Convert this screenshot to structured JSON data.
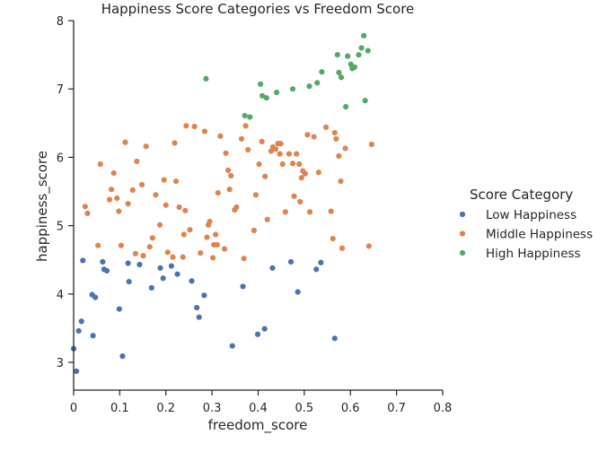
{
  "chart_data": {
    "type": "scatter",
    "title": "Happiness Score Categories vs Freedom Score",
    "xlabel": "freedom_score",
    "ylabel": "happiness_score",
    "xlim": [
      0,
      0.8
    ],
    "ylim": [
      2.6,
      8
    ],
    "xticks": [
      "0",
      "0.1",
      "0.2",
      "0.3",
      "0.4",
      "0.5",
      "0.6",
      "0.7",
      "0.8"
    ],
    "yticks": [
      "3",
      "4",
      "5",
      "6",
      "7",
      "8"
    ],
    "xtick_values": [
      0,
      0.1,
      0.2,
      0.3,
      0.4,
      0.5,
      0.6,
      0.7,
      0.8
    ],
    "ytick_values": [
      3,
      4,
      5,
      6,
      7,
      8
    ],
    "grid": false,
    "legend": {
      "title": "Score Category",
      "placement": "center-right"
    },
    "series": [
      {
        "name": "Low Happiness",
        "color": "#4c72b0",
        "points": [
          [
            0.0,
            3.2
          ],
          [
            0.006,
            2.87
          ],
          [
            0.011,
            3.46
          ],
          [
            0.017,
            3.6
          ],
          [
            0.02,
            4.49
          ],
          [
            0.04,
            3.99
          ],
          [
            0.042,
            3.39
          ],
          [
            0.047,
            3.95
          ],
          [
            0.063,
            4.47
          ],
          [
            0.066,
            4.36
          ],
          [
            0.072,
            4.34
          ],
          [
            0.099,
            3.78
          ],
          [
            0.106,
            3.09
          ],
          [
            0.118,
            4.45
          ],
          [
            0.12,
            4.18
          ],
          [
            0.143,
            4.43
          ],
          [
            0.169,
            4.09
          ],
          [
            0.188,
            4.38
          ],
          [
            0.194,
            4.23
          ],
          [
            0.212,
            4.41
          ],
          [
            0.225,
            4.29
          ],
          [
            0.256,
            4.19
          ],
          [
            0.267,
            3.8
          ],
          [
            0.272,
            3.66
          ],
          [
            0.283,
            3.98
          ],
          [
            0.344,
            3.24
          ],
          [
            0.367,
            4.11
          ],
          [
            0.399,
            3.41
          ],
          [
            0.414,
            3.49
          ],
          [
            0.431,
            4.38
          ],
          [
            0.471,
            4.47
          ],
          [
            0.486,
            4.03
          ],
          [
            0.526,
            4.36
          ],
          [
            0.536,
            4.46
          ],
          [
            0.566,
            3.35
          ]
        ]
      },
      {
        "name": "Middle Happiness",
        "color": "#dd8452",
        "points": [
          [
            0.025,
            5.28
          ],
          [
            0.03,
            5.18
          ],
          [
            0.053,
            4.71
          ],
          [
            0.058,
            5.9
          ],
          [
            0.078,
            5.38
          ],
          [
            0.082,
            5.53
          ],
          [
            0.087,
            5.77
          ],
          [
            0.094,
            5.4
          ],
          [
            0.098,
            5.21
          ],
          [
            0.103,
            4.71
          ],
          [
            0.112,
            6.22
          ],
          [
            0.118,
            5.32
          ],
          [
            0.128,
            5.52
          ],
          [
            0.134,
            4.59
          ],
          [
            0.137,
            5.94
          ],
          [
            0.148,
            5.6
          ],
          [
            0.151,
            4.56
          ],
          [
            0.157,
            6.16
          ],
          [
            0.165,
            4.69
          ],
          [
            0.171,
            4.82
          ],
          [
            0.178,
            5.45
          ],
          [
            0.187,
            5.01
          ],
          [
            0.196,
            5.67
          ],
          [
            0.2,
            5.3
          ],
          [
            0.204,
            4.61
          ],
          [
            0.215,
            4.54
          ],
          [
            0.219,
            6.21
          ],
          [
            0.222,
            5.65
          ],
          [
            0.229,
            5.27
          ],
          [
            0.237,
            4.54
          ],
          [
            0.239,
            4.87
          ],
          [
            0.242,
            5.22
          ],
          [
            0.244,
            6.46
          ],
          [
            0.252,
            4.94
          ],
          [
            0.262,
            6.45
          ],
          [
            0.275,
            4.6
          ],
          [
            0.284,
            6.38
          ],
          [
            0.289,
            4.83
          ],
          [
            0.292,
            5.01
          ],
          [
            0.295,
            5.06
          ],
          [
            0.302,
            4.53
          ],
          [
            0.304,
            4.72
          ],
          [
            0.308,
            4.87
          ],
          [
            0.311,
            4.72
          ],
          [
            0.313,
            5.48
          ],
          [
            0.318,
            6.31
          ],
          [
            0.327,
            4.66
          ],
          [
            0.33,
            6.06
          ],
          [
            0.335,
            5.81
          ],
          [
            0.338,
            5.53
          ],
          [
            0.341,
            5.73
          ],
          [
            0.349,
            5.23
          ],
          [
            0.353,
            5.27
          ],
          [
            0.364,
            6.27
          ],
          [
            0.369,
            4.52
          ],
          [
            0.373,
            6.46
          ],
          [
            0.378,
            6.11
          ],
          [
            0.391,
            4.93
          ],
          [
            0.395,
            5.45
          ],
          [
            0.402,
            5.9
          ],
          [
            0.408,
            6.23
          ],
          [
            0.415,
            5.72
          ],
          [
            0.42,
            5.09
          ],
          [
            0.428,
            6.09
          ],
          [
            0.432,
            6.15
          ],
          [
            0.438,
            6.12
          ],
          [
            0.443,
            6.2
          ],
          [
            0.447,
            6.05
          ],
          [
            0.449,
            6.2
          ],
          [
            0.453,
            5.9
          ],
          [
            0.459,
            5.2
          ],
          [
            0.467,
            6.05
          ],
          [
            0.475,
            5.91
          ],
          [
            0.478,
            5.43
          ],
          [
            0.483,
            6.05
          ],
          [
            0.489,
            5.9
          ],
          [
            0.491,
            5.35
          ],
          [
            0.494,
            5.7
          ],
          [
            0.497,
            5.8
          ],
          [
            0.502,
            5.76
          ],
          [
            0.507,
            6.33
          ],
          [
            0.512,
            5.2
          ],
          [
            0.521,
            6.3
          ],
          [
            0.531,
            5.78
          ],
          [
            0.547,
            6.44
          ],
          [
            0.558,
            5.21
          ],
          [
            0.562,
            4.81
          ],
          [
            0.566,
            6.36
          ],
          [
            0.569,
            6.27
          ],
          [
            0.575,
            6.02
          ],
          [
            0.579,
            5.65
          ],
          [
            0.582,
            4.67
          ],
          [
            0.589,
            6.13
          ],
          [
            0.64,
            4.7
          ],
          [
            0.646,
            6.19
          ]
        ]
      },
      {
        "name": "High Happiness",
        "color": "#55a868",
        "points": [
          [
            0.287,
            7.15
          ],
          [
            0.371,
            6.61
          ],
          [
            0.382,
            6.59
          ],
          [
            0.405,
            7.07
          ],
          [
            0.409,
            6.9
          ],
          [
            0.418,
            6.87
          ],
          [
            0.44,
            6.95
          ],
          [
            0.475,
            7.0
          ],
          [
            0.511,
            7.04
          ],
          [
            0.528,
            7.09
          ],
          [
            0.538,
            7.25
          ],
          [
            0.572,
            7.5
          ],
          [
            0.575,
            7.24
          ],
          [
            0.58,
            7.17
          ],
          [
            0.59,
            6.74
          ],
          [
            0.594,
            7.48
          ],
          [
            0.601,
            7.36
          ],
          [
            0.604,
            7.3
          ],
          [
            0.609,
            7.32
          ],
          [
            0.618,
            7.5
          ],
          [
            0.624,
            7.6
          ],
          [
            0.629,
            7.78
          ],
          [
            0.632,
            6.83
          ],
          [
            0.638,
            7.56
          ]
        ]
      }
    ]
  }
}
